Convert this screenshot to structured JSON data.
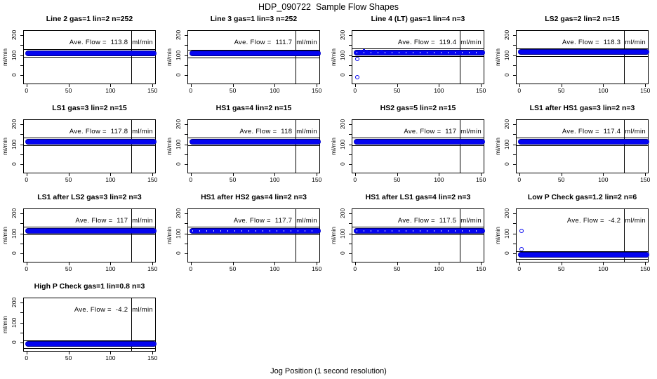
{
  "figure_title": "HDP_090722  Sample Flow Shapes",
  "x_axis_title": "Jog Position (1 second resolution)",
  "chart_data": {
    "type": "scatter",
    "layout": {
      "rows": 4,
      "cols": 4,
      "subplot_count": 13,
      "grid": "row-major"
    },
    "title": "HDP_090722  Sample Flow Shapes",
    "xlabel": "Jog Position (1 second resolution)",
    "ylabel": "ml/min",
    "xlim": [
      -4,
      154
    ],
    "ylim": [
      -45,
      225
    ],
    "x_ticks": [
      0,
      50,
      100,
      150
    ],
    "y_ticks": [
      0,
      100,
      200
    ],
    "y_minor_ticks": [
      50,
      150
    ],
    "vline_x": 125,
    "ref_line_offset": 19,
    "point_color": "#0000ff",
    "ave_prefix": "Ave. Flow =",
    "ave_unit": "ml/min",
    "subplots": [
      {
        "title": "Line 2 gas=1 lin=2 n=252",
        "ave_flow": "113.8",
        "band_y": 113.8,
        "band_x": [
          0,
          153
        ],
        "outliers": [],
        "bumps": [],
        "speckled": false
      },
      {
        "title": "Line 3 gas=1 lin=3 n=252",
        "ave_flow": "111.7",
        "band_y": 111.7,
        "band_x": [
          0,
          153
        ],
        "outliers": [],
        "bumps": [],
        "speckled": false
      },
      {
        "title": "Line 4 (LT) gas=1 lin=4 n=3",
        "ave_flow": "119.4",
        "band_y": 117,
        "band_x": [
          0,
          153
        ],
        "outliers": [
          {
            "x": 2,
            "y": 85
          },
          {
            "x": 2,
            "y": -8
          }
        ],
        "bumps": [
          {
            "x": 6,
            "y": 128
          },
          {
            "x": 9,
            "y": 129
          },
          {
            "x": 13,
            "y": 128
          },
          {
            "x": 18,
            "y": 127
          },
          {
            "x": 24,
            "y": 127
          },
          {
            "x": 30,
            "y": 126
          }
        ],
        "speckled": true
      },
      {
        "title": "LS2 gas=2 lin=2 n=15",
        "ave_flow": "118.3",
        "band_y": 118.3,
        "band_x": [
          0,
          153
        ],
        "outliers": [],
        "bumps": [],
        "speckled": false
      },
      {
        "title": "LS1 gas=3 lin=2 n=15",
        "ave_flow": "117.8",
        "band_y": 117.8,
        "band_x": [
          0,
          153
        ],
        "outliers": [],
        "bumps": [],
        "speckled": false
      },
      {
        "title": "HS1 gas=4 lin=2 n=15",
        "ave_flow": "118",
        "band_y": 118,
        "band_x": [
          0,
          153
        ],
        "outliers": [],
        "bumps": [],
        "speckled": false
      },
      {
        "title": "HS2 gas=5 lin=2 n=15",
        "ave_flow": "117",
        "band_y": 117,
        "band_x": [
          0,
          153
        ],
        "outliers": [],
        "bumps": [],
        "speckled": false
      },
      {
        "title": "LS1 after HS1 gas=3 lin=2 n=3",
        "ave_flow": "117.4",
        "band_y": 117.4,
        "band_x": [
          0,
          153
        ],
        "outliers": [],
        "bumps": [],
        "speckled": false
      },
      {
        "title": "LS1 after LS2 gas=3 lin=2 n=3",
        "ave_flow": "117",
        "band_y": 117,
        "band_x": [
          0,
          153
        ],
        "outliers": [],
        "bumps": [],
        "speckled": false
      },
      {
        "title": "HS1 after HS2 gas=4 lin=2 n=3",
        "ave_flow": "117.7",
        "band_y": 117.7,
        "band_x": [
          0,
          153
        ],
        "outliers": [],
        "bumps": [],
        "speckled": true
      },
      {
        "title": "HS1 after LS1 gas=4 lin=2 n=3",
        "ave_flow": "117.5",
        "band_y": 117.5,
        "band_x": [
          0,
          153
        ],
        "outliers": [],
        "bumps": [],
        "speckled": true
      },
      {
        "title": "Low P Check gas=1.2 lin=2 n=6",
        "ave_flow": "-4.2",
        "band_y": -4.2,
        "band_x": [
          0,
          153
        ],
        "outliers": [
          {
            "x": 2,
            "y": 118
          },
          {
            "x": 2,
            "y": 25
          }
        ],
        "bumps": [],
        "speckled": false
      },
      {
        "title": "High P Check gas=1 lin=0.8 n=3",
        "ave_flow": "-4.2",
        "band_y": -4.2,
        "band_x": [
          0,
          153
        ],
        "outliers": [],
        "bumps": [],
        "speckled": false
      }
    ]
  }
}
